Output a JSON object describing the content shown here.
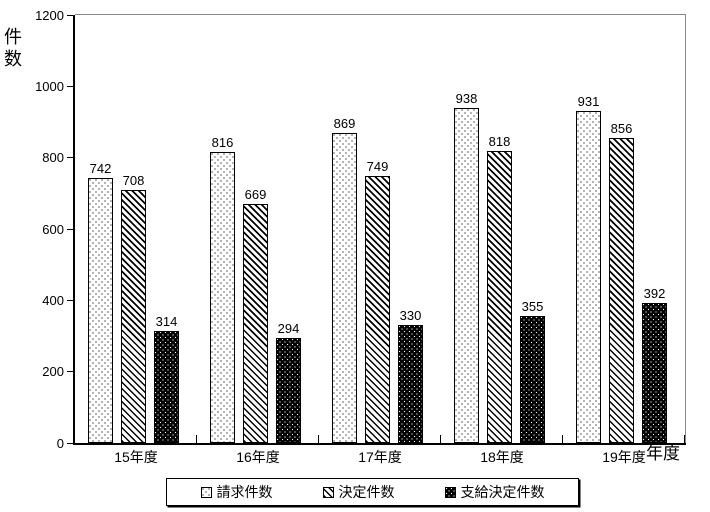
{
  "chart_data": {
    "type": "bar",
    "title": "",
    "categories": [
      "15年度",
      "16年度",
      "17年度",
      "18年度",
      "19年度"
    ],
    "series": [
      {
        "name": "請求件数",
        "pattern": "black-dots-on-white",
        "values": [
          742,
          816,
          869,
          938,
          931
        ]
      },
      {
        "name": "決定件数",
        "pattern": "diagonal-hatch",
        "values": [
          708,
          669,
          749,
          818,
          856
        ]
      },
      {
        "name": "支給決定件数",
        "pattern": "white-dots-on-black",
        "values": [
          314,
          294,
          330,
          355,
          392
        ]
      }
    ],
    "ylabel": "件数",
    "xlabel": "年度",
    "ylim": [
      0,
      1200
    ],
    "yticks": [
      0,
      200,
      400,
      600,
      800,
      1000,
      1200
    ],
    "grid": false,
    "legend_position": "bottom",
    "data_labels": true
  },
  "colors": {
    "axis": "#000000",
    "plot_border": "#888888",
    "bar_solid": "#000000",
    "background": "#ffffff"
  }
}
